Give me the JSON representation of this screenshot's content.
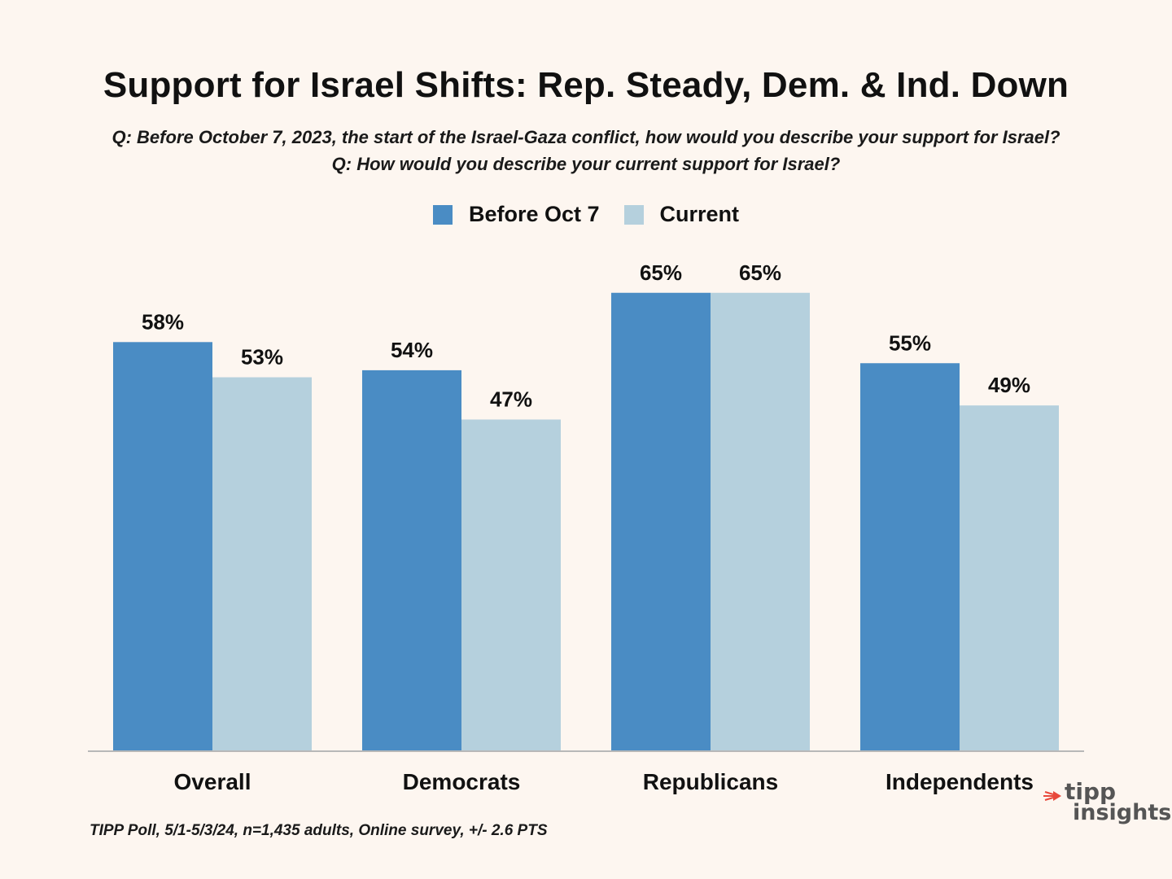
{
  "header": {
    "title": "Support for Israel Shifts: Rep. Steady, Dem. & Ind. Down",
    "question_1": "Q: Before October 7, 2023, the start of the Israel-Gaza conflict, how would you describe your support for Israel?",
    "question_2": "Q: How would you describe your current support for Israel?"
  },
  "legend": {
    "series_1": "Before Oct 7",
    "series_2": "Current"
  },
  "colors": {
    "before": "#4a8cc4",
    "current": "#b5d0dd",
    "axis": "#b8b8b8",
    "background": "#fdf6f0"
  },
  "chart_data": {
    "type": "bar",
    "title": "Support for Israel Shifts: Rep. Steady, Dem. & Ind. Down",
    "categories": [
      "Overall",
      "Democrats",
      "Republicans",
      "Independents"
    ],
    "series": [
      {
        "name": "Before Oct 7",
        "values": [
          58,
          54,
          65,
          55
        ],
        "labels": [
          "58%",
          "54%",
          "65%",
          "55%"
        ]
      },
      {
        "name": "Current",
        "values": [
          53,
          47,
          65,
          49
        ],
        "labels": [
          "53%",
          "47%",
          "65%",
          "49%"
        ]
      }
    ],
    "xlabel": "",
    "ylabel": "",
    "ylim": [
      0,
      100
    ],
    "grid": false,
    "legend_position": "top-center"
  },
  "footer": {
    "source": "TIPP Poll, 5/1-5/3/24, n=1,435 adults, Online survey, +/- 2.6 PTS"
  },
  "logo": {
    "line_1": "tipp",
    "line_2": "insights"
  }
}
